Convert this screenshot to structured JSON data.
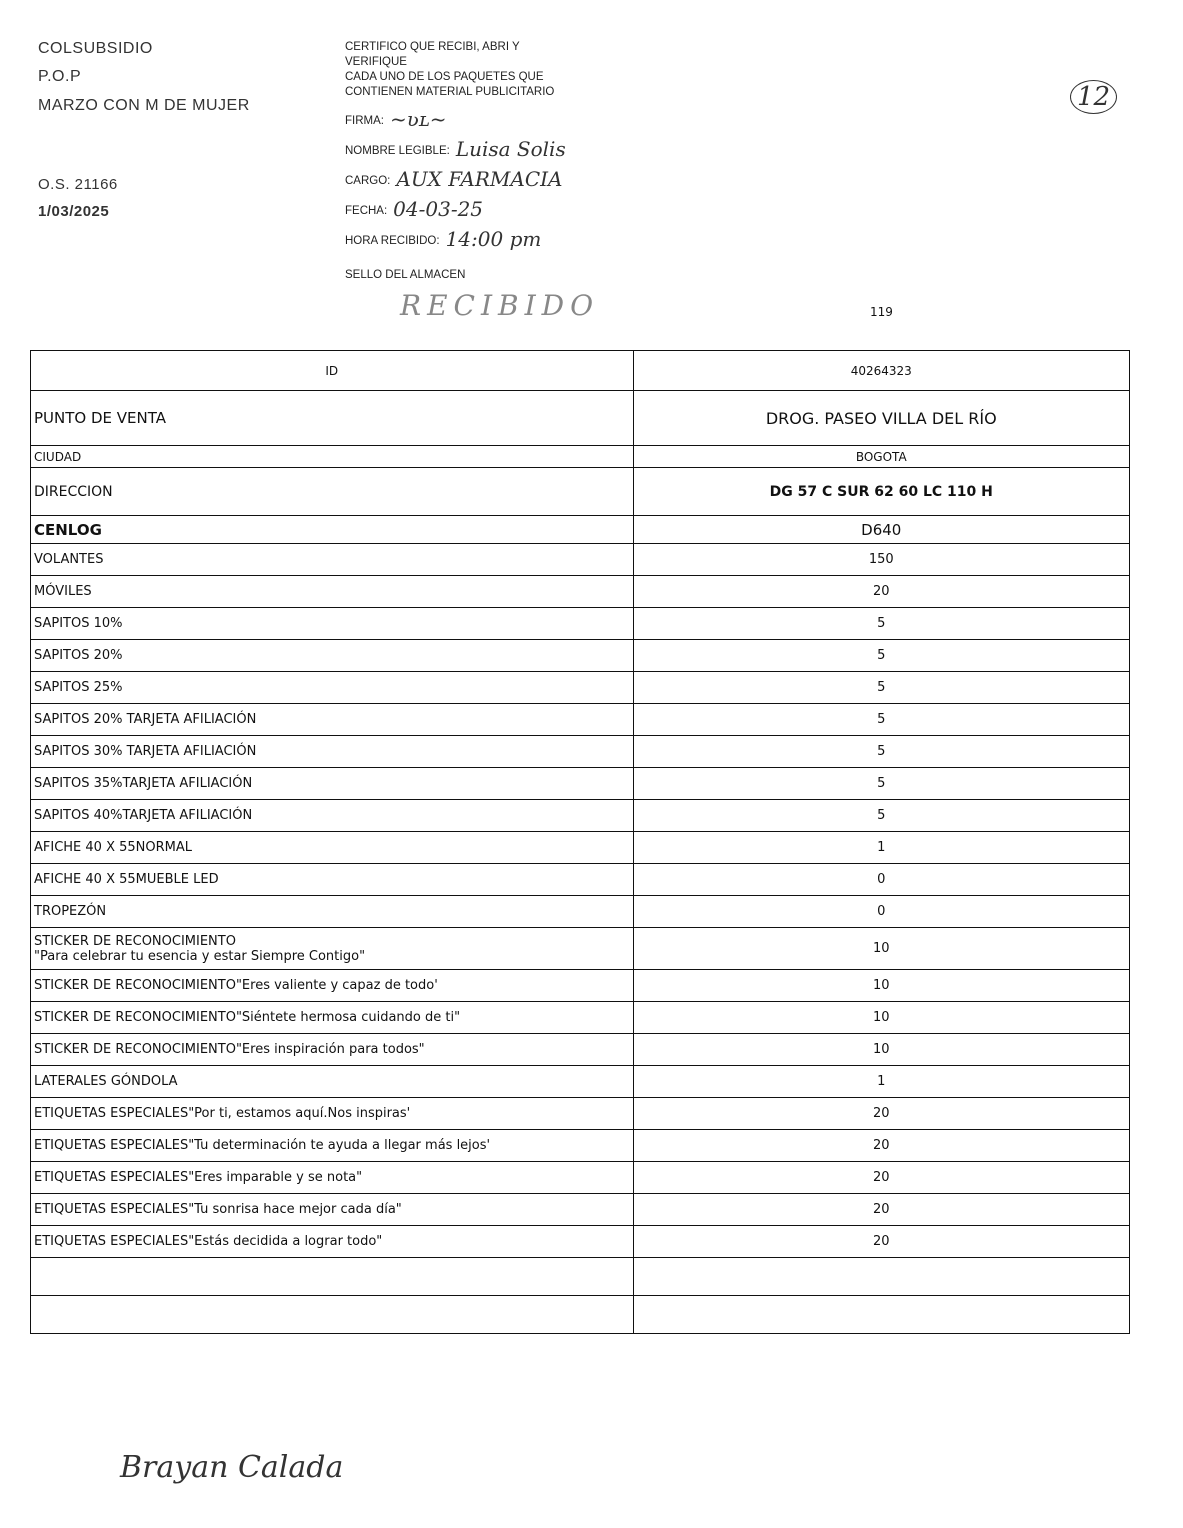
{
  "header": {
    "company": "COLSUBSIDIO",
    "type": "P.O.P",
    "campaign": "MARZO CON M DE MUJER",
    "order": "O.S. 21166",
    "date": "1/03/2025",
    "page_mark": "12"
  },
  "certification": {
    "text_lines": [
      "CERTIFICO QUE RECIBI, ABRI Y",
      "VERIFIQUE",
      "CADA UNO DE LOS PAQUETES QUE",
      "CONTIENEN MATERIAL PUBLICITARIO"
    ],
    "firma_label": "FIRMA:",
    "nombre_label": "NOMBRE LEGIBLE:",
    "nombre_value": "Luisa Solis",
    "cargo_label": "CARGO:",
    "cargo_value": "AUX FARMACIA",
    "fecha_label": "FECHA:",
    "fecha_value": "04-03-25",
    "hora_label": "HORA RECIBIDO:",
    "hora_value": "14:00 pm",
    "sello_label": "SELLO DEL ALMACEN",
    "stamp": "RECIBIDO"
  },
  "sheet_number": "119",
  "table": {
    "id_label": "ID",
    "id_value": "40264323",
    "punto_label": "PUNTO DE VENTA",
    "punto_value": "DROG. PASEO VILLA DEL RÍO",
    "ciudad_label": "CIUDAD",
    "ciudad_value": "BOGOTA",
    "direccion_label": "DIRECCION",
    "direccion_value": "DG 57 C SUR 62 60 LC 110 H",
    "cenlog_label": "CENLOG",
    "cenlog_value": "D640",
    "items": [
      {
        "label": "VOLANTES",
        "qty": "150"
      },
      {
        "label": "MÓVILES",
        "qty": "20"
      },
      {
        "label": "SAPITOS 10%",
        "qty": "5"
      },
      {
        "label": "SAPITOS 20%",
        "qty": "5"
      },
      {
        "label": "SAPITOS 25%",
        "qty": "5"
      },
      {
        "label": "SAPITOS 20% TARJETA AFILIACIÓN",
        "qty": "5"
      },
      {
        "label": "SAPITOS 30% TARJETA AFILIACIÓN",
        "qty": "5"
      },
      {
        "label": "SAPITOS 35%TARJETA AFILIACIÓN",
        "qty": "5"
      },
      {
        "label": "SAPITOS 40%TARJETA AFILIACIÓN",
        "qty": "5"
      },
      {
        "label": "AFICHE 40 X 55NORMAL",
        "qty": "1"
      },
      {
        "label": "AFICHE 40 X 55MUEBLE LED",
        "qty": "0"
      },
      {
        "label": "TROPEZÓN",
        "qty": "0"
      },
      {
        "label": "STICKER DE RECONOCIMIENTO",
        "label2": "\"Para celebrar tu esencia y estar Siempre Contigo\"",
        "qty": "10"
      },
      {
        "label": "STICKER DE RECONOCIMIENTO\"Eres valiente y capaz de todo'",
        "qty": "10"
      },
      {
        "label": "STICKER DE RECONOCIMIENTO\"Siéntete hermosa cuidando de ti\"",
        "qty": "10"
      },
      {
        "label": "STICKER DE RECONOCIMIENTO\"Eres inspiración para todos\"",
        "qty": "10"
      },
      {
        "label": "LATERALES GÓNDOLA",
        "qty": "1"
      },
      {
        "label": "ETIQUETAS ESPECIALES\"Por ti, estamos aquí.Nos inspiras'",
        "qty": "20"
      },
      {
        "label": "ETIQUETAS ESPECIALES\"Tu determinación te ayuda a llegar más lejos'",
        "qty": "20"
      },
      {
        "label": "ETIQUETAS ESPECIALES\"Eres imparable y se nota\"",
        "qty": "20"
      },
      {
        "label": "ETIQUETAS ESPECIALES\"Tu sonrisa hace mejor cada día\"",
        "qty": "20"
      },
      {
        "label": "ETIQUETAS ESPECIALES\"Estás decidida a lograr todo\"",
        "qty": "20"
      }
    ]
  },
  "footer_signature": "Brayan Calada"
}
